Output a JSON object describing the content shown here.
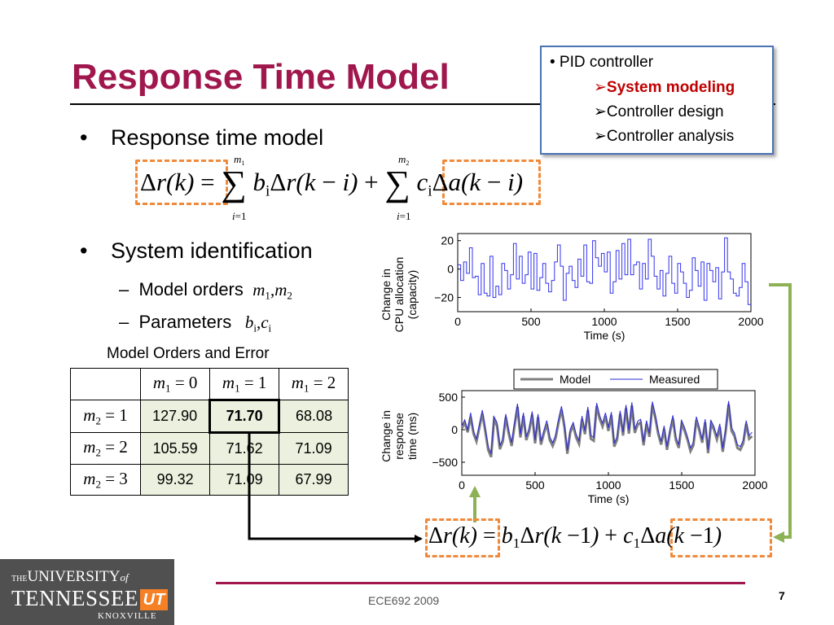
{
  "slide": {
    "title": "Response Time Model",
    "page_number": "7",
    "footer": "ECE692   2009"
  },
  "outline": {
    "items": [
      "• PID controller",
      "➢System modeling",
      "➢Controller design",
      "➢Controller analysis"
    ],
    "active": "➢System modeling"
  },
  "bullets": {
    "b1": "Response time model",
    "b2": "System identification",
    "sub1": "Model orders",
    "sub2": "Parameters",
    "bullet_char": "•",
    "dash_char": "–"
  },
  "table": {
    "caption": "Model Orders and Error",
    "col_headers": [
      "m1 = 0",
      "m1 = 1",
      "m1 = 2"
    ],
    "row_headers": [
      "m2 = 1",
      "m2 = 2",
      "m2 = 3"
    ],
    "rows": [
      [
        "127.90",
        "71.70",
        "68.08"
      ],
      [
        "105.59",
        "71.62",
        "71.09"
      ],
      [
        "99.32",
        "71.09",
        "67.99"
      ]
    ],
    "highlight": "71.70"
  },
  "logo": {
    "line1_the": "THE",
    "line1": "UNIVERSITY",
    "line1_of": "of",
    "line2": "TENNESSEE",
    "mark": "UT",
    "line3": "KNOXVILLE"
  },
  "chart_data": [
    {
      "type": "line",
      "xlabel": "Time (s)",
      "ylabel": "Change in CPU allocation (capacity)",
      "ylabel_lines": [
        "Change in",
        "CPU allocation",
        "(capacity)"
      ],
      "xlim": [
        0,
        2000
      ],
      "ylim": [
        -30,
        25
      ],
      "xticks": [
        "0",
        "500",
        "1000",
        "1500",
        "2000"
      ],
      "yticks": [
        "20",
        "0",
        "−20"
      ],
      "series_color": "#3333ee",
      "note": "step signal, 100 steps of 20 s",
      "x": [
        0,
        20,
        40,
        60,
        80,
        100,
        120,
        140,
        160,
        180,
        200,
        220,
        240,
        260,
        280,
        300,
        320,
        340,
        360,
        380,
        400,
        420,
        440,
        460,
        480,
        500,
        520,
        540,
        560,
        580,
        600,
        620,
        640,
        660,
        680,
        700,
        720,
        740,
        760,
        780,
        800,
        820,
        840,
        860,
        880,
        900,
        920,
        940,
        960,
        980,
        1000,
        1020,
        1040,
        1060,
        1080,
        1100,
        1120,
        1140,
        1160,
        1180,
        1200,
        1220,
        1240,
        1260,
        1280,
        1300,
        1320,
        1340,
        1360,
        1380,
        1400,
        1420,
        1440,
        1460,
        1480,
        1500,
        1520,
        1540,
        1560,
        1580,
        1600,
        1620,
        1640,
        1660,
        1680,
        1700,
        1720,
        1740,
        1760,
        1780,
        1800,
        1820,
        1840,
        1860,
        1880,
        1900,
        1920,
        1940,
        1960,
        1980
      ],
      "values": [
        3,
        -8,
        5,
        -3,
        15,
        -6,
        -5,
        -18,
        4,
        -17,
        -19,
        9,
        -20,
        -12,
        -18,
        4,
        -1,
        -14,
        -4,
        18,
        -7,
        9,
        -10,
        -4,
        12,
        -14,
        11,
        -15,
        -6,
        4,
        -10,
        -16,
        -8,
        5,
        17,
        2,
        -22,
        -3,
        2,
        -8,
        -13,
        7,
        -5,
        17,
        -9,
        -10,
        20,
        8,
        2,
        11,
        -2,
        12,
        -17,
        -9,
        13,
        -7,
        18,
        -4,
        21,
        -4,
        3,
        5,
        -14,
        4,
        -7,
        21,
        9,
        -5,
        -14,
        -1,
        -19,
        -3,
        9,
        -10,
        -17,
        4,
        -2,
        -10,
        -20,
        -15,
        8,
        -1,
        -12,
        5,
        -22,
        4,
        -1,
        -9,
        1,
        -21,
        -2,
        22,
        -2,
        -7,
        -17,
        -19,
        -13,
        4,
        -9,
        -25
      ]
    },
    {
      "type": "line",
      "xlabel": "Time (s)",
      "ylabel": "Change in response time (ms)",
      "ylabel_lines": [
        "Change in",
        "response",
        "time (ms)"
      ],
      "xlim": [
        0,
        2000
      ],
      "ylim": [
        -700,
        600
      ],
      "xticks": [
        "0",
        "500",
        "1000",
        "1500",
        "2000"
      ],
      "yticks": [
        "500",
        "0",
        "−500"
      ],
      "legend_position": "top",
      "series": [
        {
          "name": "Model",
          "color": "#7f7f7f",
          "values": [
            20,
            110,
            -40,
            200,
            -60,
            -180,
            30,
            250,
            -20,
            -310,
            -420,
            150,
            60,
            -300,
            -180,
            190,
            -60,
            -250,
            60,
            350,
            -120,
            210,
            -160,
            -20,
            230,
            -210,
            190,
            -230,
            -60,
            90,
            -160,
            -250,
            -130,
            110,
            310,
            40,
            -370,
            -40,
            60,
            -120,
            -220,
            160,
            -70,
            300,
            -140,
            -170,
            360,
            170,
            50,
            210,
            -20,
            220,
            -260,
            -150,
            240,
            -90,
            330,
            -60,
            370,
            -50,
            80,
            110,
            -240,
            90,
            -110,
            380,
            180,
            -70,
            -230,
            10,
            -310,
            -40,
            170,
            -160,
            -280,
            90,
            -20,
            -160,
            -330,
            -240,
            150,
            -10,
            -200,
            110,
            -360,
            90,
            0,
            -150,
            40,
            -340,
            -30,
            390,
            -20,
            -100,
            -280,
            -310,
            -210,
            90,
            -140,
            -100
          ]
        },
        {
          "name": "Measured",
          "color": "#2b2bd4",
          "values": [
            60,
            150,
            -10,
            260,
            -20,
            -140,
            80,
            300,
            30,
            -260,
            -370,
            200,
            110,
            -250,
            -130,
            240,
            -10,
            -200,
            110,
            400,
            -70,
            260,
            -110,
            30,
            280,
            -160,
            240,
            -180,
            -10,
            140,
            -110,
            -200,
            -80,
            160,
            360,
            90,
            -320,
            10,
            110,
            -70,
            -170,
            210,
            -20,
            350,
            -90,
            -120,
            410,
            220,
            100,
            260,
            30,
            270,
            -210,
            -100,
            290,
            -40,
            380,
            -10,
            420,
            0,
            130,
            160,
            -190,
            140,
            -60,
            430,
            230,
            -20,
            -180,
            60,
            -260,
            10,
            220,
            -110,
            -230,
            140,
            30,
            -110,
            -280,
            -190,
            200,
            40,
            -150,
            160,
            -310,
            140,
            50,
            -100,
            90,
            -290,
            20,
            440,
            30,
            -50,
            -230,
            -260,
            -160,
            140,
            -90,
            -40
          ]
        }
      ]
    }
  ]
}
